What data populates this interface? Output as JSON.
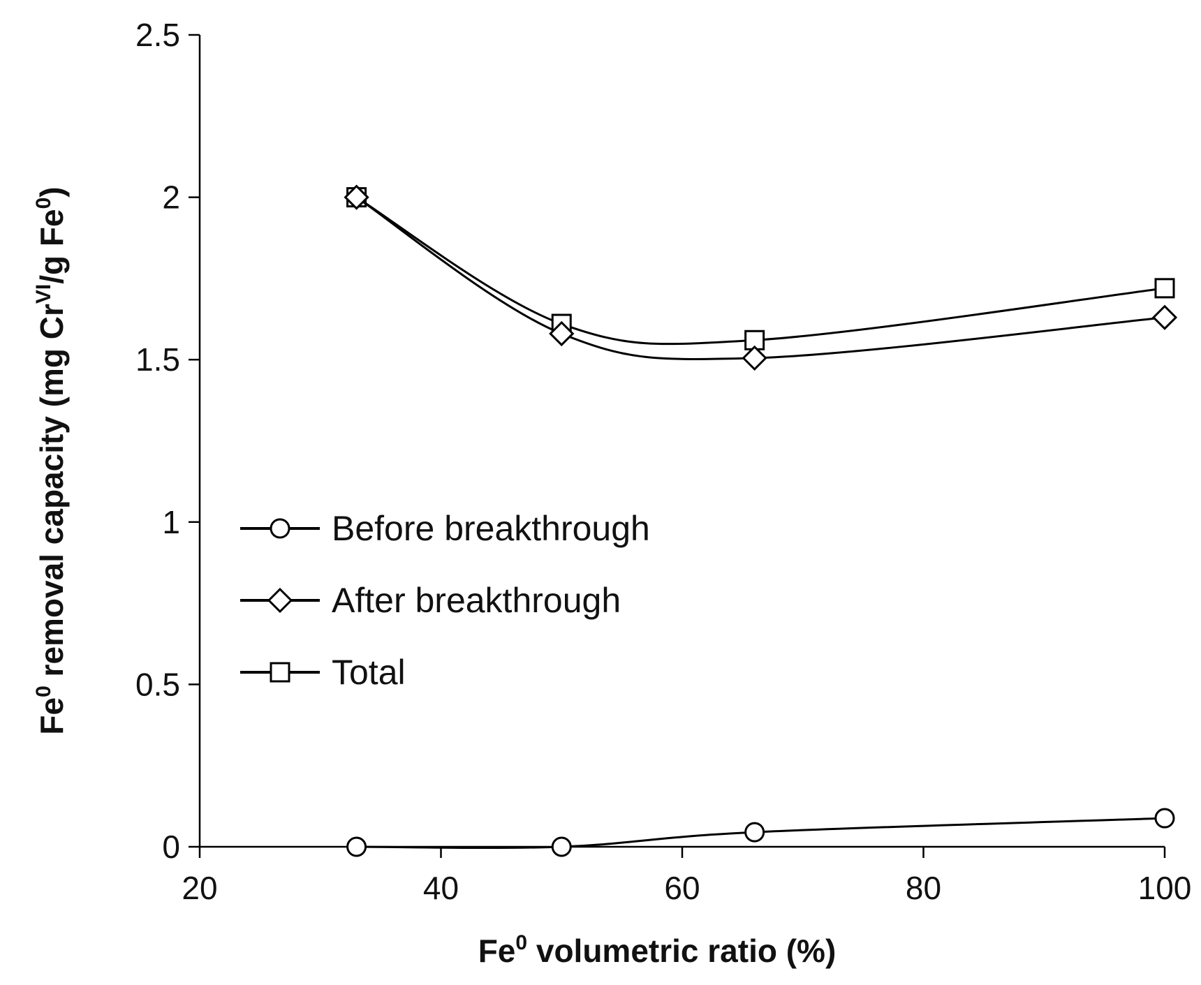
{
  "chart_data": {
    "type": "line",
    "title": "",
    "xlabel": {
      "main": "Fe",
      "sup": "0",
      "rest": " volumetric ratio (%)"
    },
    "ylabel": {
      "p1": "Fe",
      "sup1": "0",
      "p2": " removal capacity (mg Cr",
      "sup2": "VI",
      "p3": "/g Fe",
      "sup3": "0",
      "p4": ")"
    },
    "xlim": [
      20,
      100
    ],
    "ylim": [
      0,
      2.5
    ],
    "x_ticks": [
      20,
      40,
      60,
      80,
      100
    ],
    "y_ticks": [
      0,
      0.5,
      1,
      1.5,
      2,
      2.5
    ],
    "x_tick_labels": [
      "20",
      "40",
      "60",
      "80",
      "100"
    ],
    "y_tick_labels": [
      "0",
      "0.5",
      "1",
      "1.5",
      "2",
      "2.5"
    ],
    "legend_position": "center-left",
    "grid": false,
    "line_color": "#000000",
    "series": [
      {
        "name": "Before breakthrough",
        "marker": "circle",
        "x": [
          33,
          50,
          66,
          100
        ],
        "values": [
          0,
          0,
          0.045,
          0.088
        ]
      },
      {
        "name": "After breakthrough",
        "marker": "diamond",
        "x": [
          33,
          50,
          66,
          100
        ],
        "values": [
          2.0,
          1.58,
          1.505,
          1.63
        ]
      },
      {
        "name": "Total",
        "marker": "square",
        "x": [
          33,
          50,
          66,
          100
        ],
        "values": [
          2.0,
          1.61,
          1.56,
          1.72
        ]
      }
    ]
  }
}
